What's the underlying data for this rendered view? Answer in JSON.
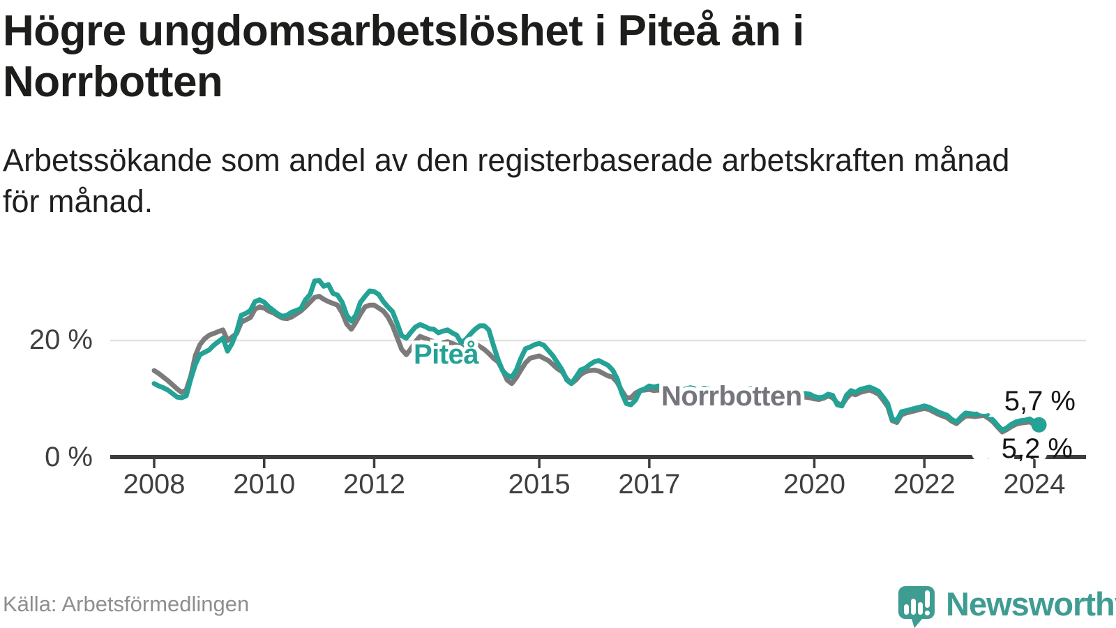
{
  "title": {
    "line1": "Högre ungdomsarbetslöshet i Piteå än i",
    "line2": "Norrbotten"
  },
  "subtitle": {
    "line1": "Arbetssökande som andel av den registerbaserade arbetskraften månad",
    "line2": "för månad."
  },
  "source": "Källa: Arbetsförmedlingen",
  "branding": {
    "name": "Newsworthy",
    "icon": "newsworthy-speech-bubble-bar-chart-icon",
    "color": "#3e9c92"
  },
  "colors": {
    "pitea": "#23a295",
    "norrbotten": "#7b7b7b",
    "norrbotten_label": "#75757d",
    "axis": "#3e3e3e",
    "grid": "#e3e3e3",
    "title_text": "#1d1d1b",
    "muted_text": "#8e8e8e"
  },
  "chart_data": {
    "type": "line",
    "frequency": "monthly",
    "x_start": "2008-01",
    "x_end": "2024-02",
    "x_tick_years": [
      2008,
      2010,
      2012,
      2015,
      2017,
      2020,
      2022,
      2024
    ],
    "y_axis": {
      "unit": "%",
      "ylim": [
        0,
        33
      ],
      "ticks": [
        {
          "value": 0,
          "label": "0 %"
        },
        {
          "value": 20,
          "label": "20 %"
        }
      ],
      "gridline_at": 20
    },
    "legend": "inline-labels",
    "series": [
      {
        "name": "Piteå",
        "color": "#23a295",
        "end_label": "5,7 %",
        "end_value": 5.7,
        "values": [
          12.7,
          12.3,
          12.0,
          11.6,
          11.0,
          10.4,
          10.3,
          10.6,
          13.5,
          16.0,
          17.6,
          18.0,
          18.4,
          19.2,
          19.8,
          20.4,
          18.2,
          19.5,
          21.5,
          24.3,
          24.6,
          25.1,
          26.6,
          26.9,
          26.5,
          25.7,
          25.1,
          24.5,
          24.1,
          24.3,
          24.8,
          25.1,
          25.4,
          26.9,
          27.8,
          30.1,
          30.2,
          29.2,
          29.5,
          28.0,
          27.7,
          26.5,
          24.3,
          23.3,
          24.3,
          26.5,
          27.5,
          28.4,
          28.3,
          27.8,
          26.6,
          25.7,
          24.9,
          22.9,
          20.8,
          20.4,
          21.4,
          22.3,
          22.7,
          22.4,
          22.0,
          21.9,
          21.3,
          21.6,
          21.8,
          21.3,
          20.9,
          19.6,
          20.2,
          21.1,
          21.9,
          22.5,
          22.5,
          21.8,
          19.2,
          16.8,
          14.9,
          14.1,
          13.8,
          15.0,
          17.0,
          18.6,
          18.9,
          19.3,
          19.5,
          19.2,
          18.3,
          17.4,
          16.2,
          15.0,
          13.3,
          12.7,
          13.8,
          15.0,
          15.3,
          15.9,
          16.4,
          16.6,
          16.2,
          15.8,
          15.0,
          13.5,
          11.1,
          9.3,
          9.1,
          9.9,
          11.5,
          11.8,
          12.3,
          12.1,
          12.3,
          11.7,
          11.9,
          12.0,
          11.7,
          11.5,
          11.8,
          12.0,
          11.8,
          11.7,
          11.9,
          11.8,
          11.6,
          11.5,
          11.4,
          11.2,
          11.0,
          11.2,
          11.4,
          11.6,
          11.8,
          11.9,
          11.8,
          11.6,
          11.4,
          11.2,
          11.0,
          10.7,
          10.5,
          10.6,
          10.8,
          10.9,
          11.0,
          10.9,
          10.5,
          10.3,
          10.4,
          10.9,
          10.7,
          9.1,
          8.9,
          10.7,
          11.5,
          11.2,
          11.7,
          11.9,
          12.1,
          11.8,
          11.4,
          10.4,
          9.3,
          6.7,
          6.4,
          7.9,
          8.1,
          8.3,
          8.5,
          8.7,
          8.9,
          8.7,
          8.3,
          7.9,
          7.6,
          7.3,
          6.6,
          6.2,
          7.0,
          7.7,
          7.6,
          7.5,
          7.6,
          7.7,
          7.2,
          6.5,
          5.6,
          4.8,
          5.2,
          5.8,
          6.2,
          6.4,
          6.5,
          6.7,
          6.2,
          5.7
        ]
      },
      {
        "name": "Norrbotten",
        "color": "#7b7b7b",
        "end_label": "5,2 %",
        "end_value": 5.2,
        "values": [
          14.9,
          14.4,
          13.8,
          13.2,
          12.5,
          11.8,
          11.2,
          11.6,
          14.0,
          17.5,
          19.3,
          20.3,
          20.9,
          21.2,
          21.5,
          21.8,
          20.0,
          20.6,
          21.2,
          23.1,
          23.5,
          23.9,
          25.3,
          25.7,
          25.5,
          25.0,
          24.7,
          24.2,
          23.8,
          23.7,
          24.0,
          24.5,
          25.0,
          25.7,
          26.5,
          27.3,
          27.5,
          27.0,
          26.6,
          26.3,
          26.0,
          24.7,
          22.8,
          21.9,
          23.1,
          24.5,
          25.7,
          26.0,
          26.0,
          25.5,
          25.0,
          24.0,
          22.5,
          20.5,
          18.5,
          17.6,
          18.6,
          19.8,
          20.7,
          20.4,
          20.1,
          19.8,
          19.4,
          19.6,
          19.8,
          19.5,
          19.2,
          18.8,
          18.9,
          19.2,
          19.5,
          19.0,
          18.5,
          17.8,
          17.0,
          16.4,
          15.0,
          13.3,
          12.7,
          13.7,
          15.0,
          16.2,
          17.0,
          17.2,
          17.4,
          17.0,
          16.6,
          15.9,
          15.2,
          14.7,
          13.5,
          12.7,
          13.3,
          14.2,
          14.7,
          14.9,
          15.0,
          14.8,
          14.4,
          14.0,
          13.8,
          12.9,
          11.5,
          10.3,
          10.3,
          11.1,
          11.5,
          11.6,
          11.7,
          11.5,
          11.6,
          11.4,
          11.5,
          11.6,
          11.4,
          11.2,
          11.4,
          11.5,
          11.4,
          11.3,
          11.4,
          11.3,
          11.1,
          11.0,
          10.9,
          10.7,
          10.5,
          10.7,
          10.9,
          11.0,
          11.1,
          11.2,
          11.2,
          11.0,
          10.8,
          10.6,
          10.4,
          10.2,
          10.0,
          10.1,
          10.3,
          10.4,
          10.4,
          10.3,
          10.1,
          10.0,
          10.2,
          10.6,
          10.3,
          9.4,
          9.0,
          10.2,
          11.0,
          10.8,
          11.2,
          11.4,
          11.6,
          11.3,
          10.9,
          9.9,
          8.8,
          6.4,
          6.1,
          7.4,
          7.7,
          7.9,
          8.1,
          8.3,
          8.5,
          8.3,
          7.9,
          7.5,
          7.2,
          6.9,
          6.3,
          5.9,
          6.6,
          7.2,
          7.2,
          7.1,
          7.2,
          7.3,
          6.8,
          6.2,
          5.3,
          4.5,
          4.9,
          5.4,
          5.8,
          6.0,
          6.1,
          6.2,
          5.7,
          5.2
        ]
      }
    ],
    "annotations": {
      "end_dot_series": "Piteå"
    }
  }
}
